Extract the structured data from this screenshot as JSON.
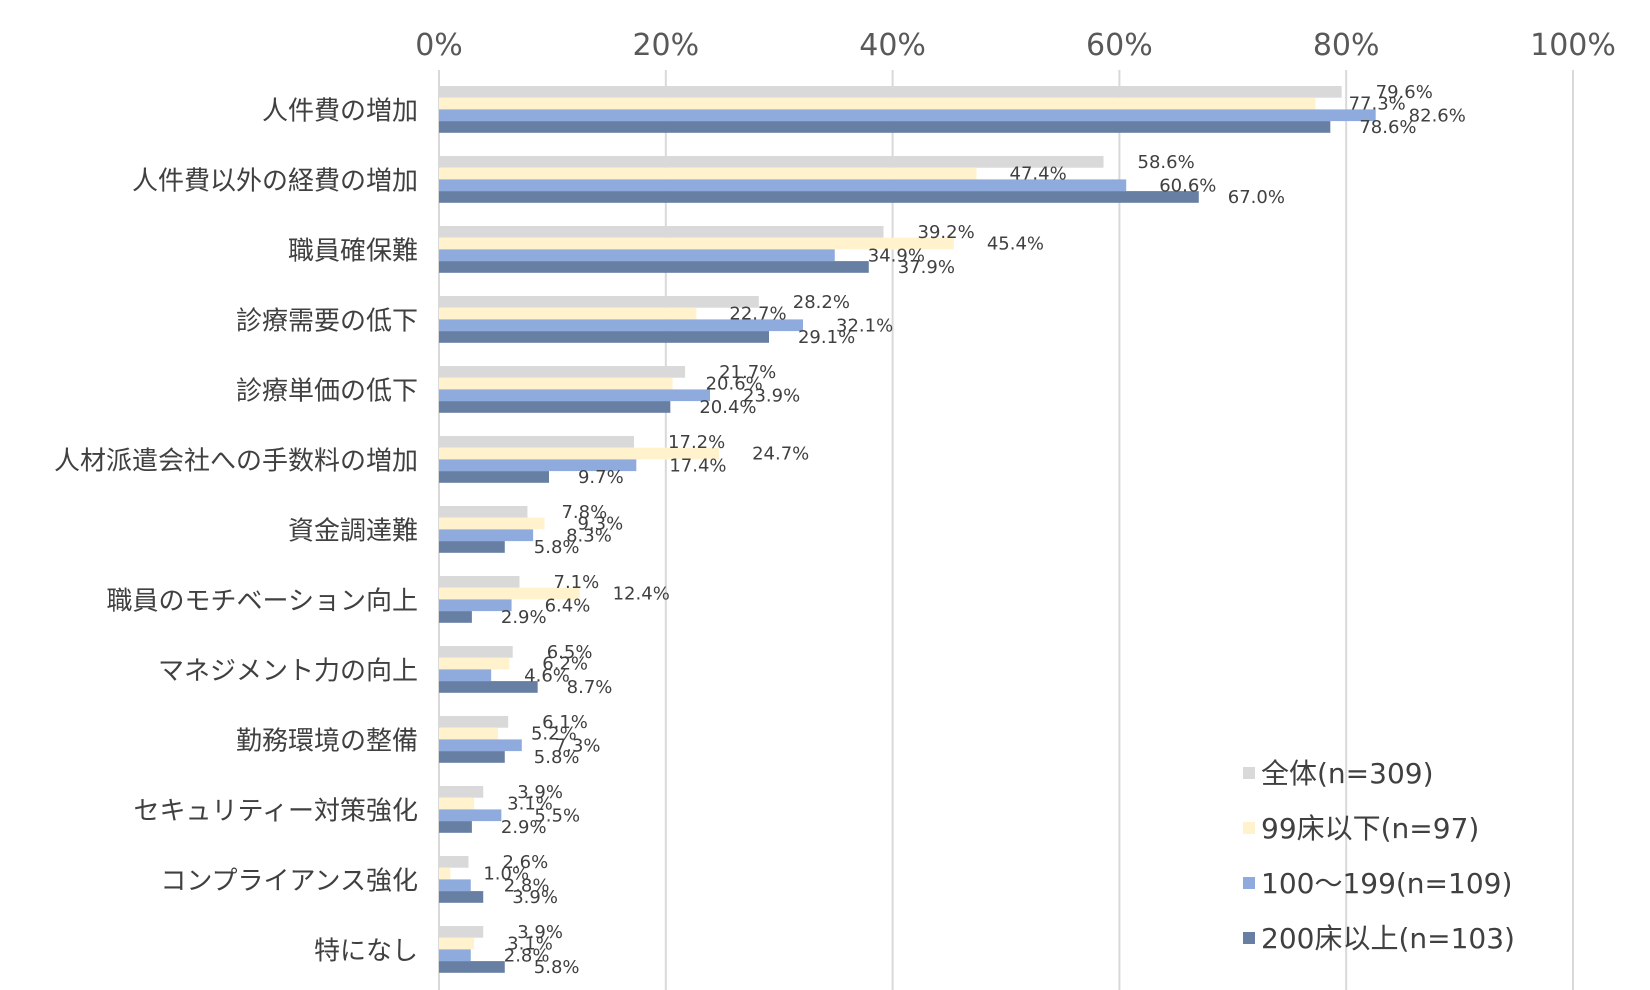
{
  "chart_data": {
    "type": "bar",
    "orientation": "horizontal",
    "title": "",
    "xlabel": "",
    "ylabel": "",
    "xlim": [
      0,
      100
    ],
    "x_ticks": [
      "0%",
      "20%",
      "40%",
      "60%",
      "80%",
      "100%"
    ],
    "x_tick_values": [
      0,
      20,
      40,
      60,
      80,
      100
    ],
    "grid": "vertical",
    "legend_position": "bottom-right",
    "categories": [
      "人件費の増加",
      "人件費以外の経費の増加",
      "職員確保難",
      "診療需要の低下",
      "診療単価の低下",
      "人材派遣会社への手数料の増加",
      "資金調達難",
      "職員のモチベーション向上",
      "マネジメント力の向上",
      "勤務環境の整備",
      "セキュリティー対策強化",
      "コンプライアンス強化",
      "特になし"
    ],
    "series": [
      {
        "name": "全体(n=309)",
        "color": "#d9d9d9",
        "values": [
          79.6,
          58.6,
          39.2,
          28.2,
          21.7,
          17.2,
          7.8,
          7.1,
          6.5,
          6.1,
          3.9,
          2.6,
          3.9
        ],
        "labels": [
          "79.6%",
          "58.6%",
          "39.2%",
          "28.2%",
          "21.7%",
          "17.2%",
          "7.8%",
          "7.1%",
          "6.5%",
          "6.1%",
          "3.9%",
          "2.6%",
          "3.9%"
        ]
      },
      {
        "name": "99床以下(n=97)",
        "color": "#fff2cc",
        "values": [
          77.3,
          47.4,
          45.4,
          22.7,
          20.6,
          24.7,
          9.3,
          12.4,
          6.2,
          5.2,
          3.1,
          1.0,
          3.1
        ],
        "labels": [
          "77.3%",
          "47.4%",
          "45.4%",
          "22.7%",
          "20.6%",
          "24.7%",
          "9.3%",
          "12.4%",
          "6.2%",
          "5.2%",
          "3.1%",
          "1.0%",
          "3.1%"
        ]
      },
      {
        "name": "100～199(n=109)",
        "color": "#8faadc",
        "values": [
          82.6,
          60.6,
          34.9,
          32.1,
          23.9,
          17.4,
          8.3,
          6.4,
          4.6,
          7.3,
          5.5,
          2.8,
          2.8
        ],
        "labels": [
          "82.6%",
          "60.6%",
          "34.9%",
          "32.1%",
          "23.9%",
          "17.4%",
          "8.3%",
          "6.4%",
          "4.6%",
          "7.3%",
          "5.5%",
          "2.8%",
          "2.8%"
        ]
      },
      {
        "name": "200床以上(n=103)",
        "color": "#667fa3",
        "values": [
          78.6,
          67.0,
          37.9,
          29.1,
          20.4,
          9.7,
          5.8,
          2.9,
          8.7,
          5.8,
          2.9,
          3.9,
          5.8
        ],
        "labels": [
          "78.6%",
          "67.0%",
          "37.9%",
          "29.1%",
          "20.4%",
          "9.7%",
          "5.8%",
          "2.9%",
          "8.7%",
          "5.8%",
          "2.9%",
          "3.9%",
          "5.8%"
        ]
      }
    ]
  }
}
